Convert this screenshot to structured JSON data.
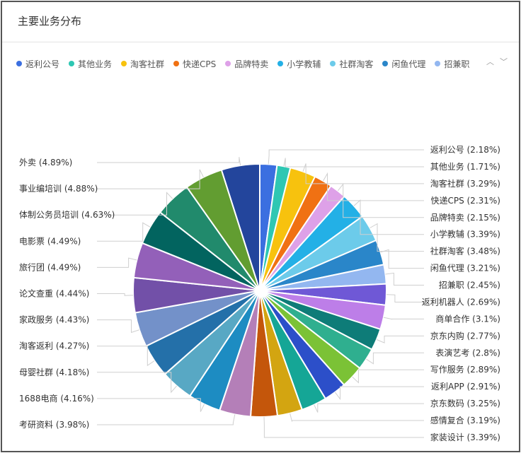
{
  "card": {
    "title": "主要业务分布"
  },
  "legend_nav": {
    "up": "︿",
    "down": "﹀"
  },
  "chart_data": {
    "type": "pie",
    "title": "主要业务分布",
    "legend_position": "top",
    "legend_visible": [
      "返利公号",
      "其他业务",
      "淘客社群",
      "快递CPS",
      "品牌特卖",
      "小学教辅",
      "社群淘客",
      "闲鱼代理",
      "招兼职"
    ],
    "slices": [
      {
        "name": "返利公号",
        "value": 2.18,
        "label": "返利公号 (2.18%)",
        "color": "#3b6fe0"
      },
      {
        "name": "其他业务",
        "value": 1.71,
        "label": "其他业务 (1.71%)",
        "color": "#2ec7b3"
      },
      {
        "name": "淘客社群",
        "value": 3.29,
        "label": "淘客社群 (3.29%)",
        "color": "#f7c20e"
      },
      {
        "name": "快递CPS",
        "value": 2.31,
        "label": "快递CPS (2.31%)",
        "color": "#f07113"
      },
      {
        "name": "品牌特卖",
        "value": 2.15,
        "label": "品牌特卖 (2.15%)",
        "color": "#dea1e8"
      },
      {
        "name": "小学教辅",
        "value": 3.39,
        "label": "小学教辅 (3.39%)",
        "color": "#23b0e6"
      },
      {
        "name": "社群淘客",
        "value": 3.48,
        "label": "社群淘客 (3.48%)",
        "color": "#6ccbea"
      },
      {
        "name": "闲鱼代理",
        "value": 3.21,
        "label": "闲鱼代理 (3.21%)",
        "color": "#2a86c9"
      },
      {
        "name": "招兼职",
        "value": 2.45,
        "label": "招兼职 (2.45%)",
        "color": "#93b7f0"
      },
      {
        "name": "返利机器人",
        "value": 2.69,
        "label": "返利机器人 (2.69%)",
        "color": "#6f58d6"
      },
      {
        "name": "商单合作",
        "value": 3.1,
        "label": "商单合作 (3.1%)",
        "color": "#bd7ee8"
      },
      {
        "name": "京东内购",
        "value": 2.77,
        "label": "京东内购 (2.77%)",
        "color": "#0e7c78"
      },
      {
        "name": "表演艺考",
        "value": 2.8,
        "label": "表演艺考 (2.8%)",
        "color": "#2faf8f"
      },
      {
        "name": "写作服务",
        "value": 2.89,
        "label": "写作服务 (2.89%)",
        "color": "#7bc236"
      },
      {
        "name": "返利APP",
        "value": 2.91,
        "label": "返利APP (2.91%)",
        "color": "#2c4fc9"
      },
      {
        "name": "京东数码",
        "value": 3.25,
        "label": "京东数码 (3.25%)",
        "color": "#15a696"
      },
      {
        "name": "感情复合",
        "value": 3.19,
        "label": "感情复合 (3.19%)",
        "color": "#d3a511"
      },
      {
        "name": "家装设计",
        "value": 3.39,
        "label": "家装设计 (3.39%)",
        "color": "#c4560b"
      },
      {
        "name": "考研资料",
        "value": 3.98,
        "label": "考研资料 (3.98%)",
        "color": "#b47fb8"
      },
      {
        "name": "1688电商",
        "value": 4.16,
        "label": "1688电商 (4.16%)",
        "color": "#1d8cc2"
      },
      {
        "name": "母婴社群",
        "value": 4.18,
        "label": "母婴社群 (4.18%)",
        "color": "#58a8c4"
      },
      {
        "name": "淘客返利",
        "value": 4.27,
        "label": "淘客返利 (4.27%)",
        "color": "#2470a9"
      },
      {
        "name": "家政服务",
        "value": 4.43,
        "label": "家政服务 (4.43%)",
        "color": "#7391c9"
      },
      {
        "name": "论文查重",
        "value": 4.44,
        "label": "论文查重 (4.44%)",
        "color": "#7250a8"
      },
      {
        "name": "旅行团",
        "value": 4.49,
        "label": "旅行团 (4.49%)",
        "color": "#9360b9"
      },
      {
        "name": "电影票",
        "value": 4.49,
        "label": "电影票 (4.49%)",
        "color": "#02645f"
      },
      {
        "name": "体制公务员培训",
        "value": 4.63,
        "label": "体制公务员培训 (4.63%)",
        "color": "#218a6c"
      },
      {
        "name": "事业编培训",
        "value": 4.88,
        "label": "事业编培训 (4.88%)",
        "color": "#629d31"
      },
      {
        "name": "外卖",
        "value": 4.89,
        "label": "外卖 (4.89%)",
        "color": "#23459c"
      }
    ]
  }
}
